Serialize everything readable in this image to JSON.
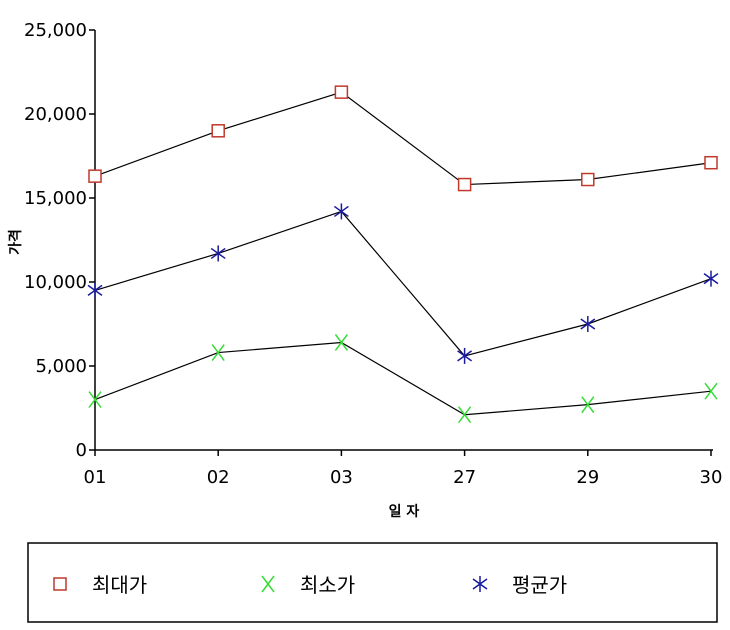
{
  "chart_data": {
    "type": "line",
    "categories": [
      "01",
      "02",
      "03",
      "27",
      "29",
      "30"
    ],
    "series": [
      {
        "name": "최대가",
        "values": [
          16300,
          19000,
          21300,
          15800,
          16100,
          17100
        ],
        "color": "#c0392b",
        "marker": "square"
      },
      {
        "name": "최소가",
        "values": [
          3000,
          5800,
          6400,
          2100,
          2700,
          3500
        ],
        "color": "#33dd33",
        "marker": "x"
      },
      {
        "name": "평균가",
        "values": [
          9500,
          11700,
          14200,
          5600,
          7500,
          10200
        ],
        "color": "#1a1aa0",
        "marker": "asterisk"
      }
    ],
    "xlabel": "일 자",
    "ylabel": "가격",
    "ylim": [
      0,
      25000
    ],
    "yticks": [
      0,
      5000,
      10000,
      15000,
      20000,
      25000
    ],
    "ytick_labels": [
      "0",
      "5,000",
      "10,000",
      "15,000",
      "20,000",
      "25,000"
    ],
    "line_color": "#000000",
    "grid": false,
    "legend_position": "bottom"
  }
}
